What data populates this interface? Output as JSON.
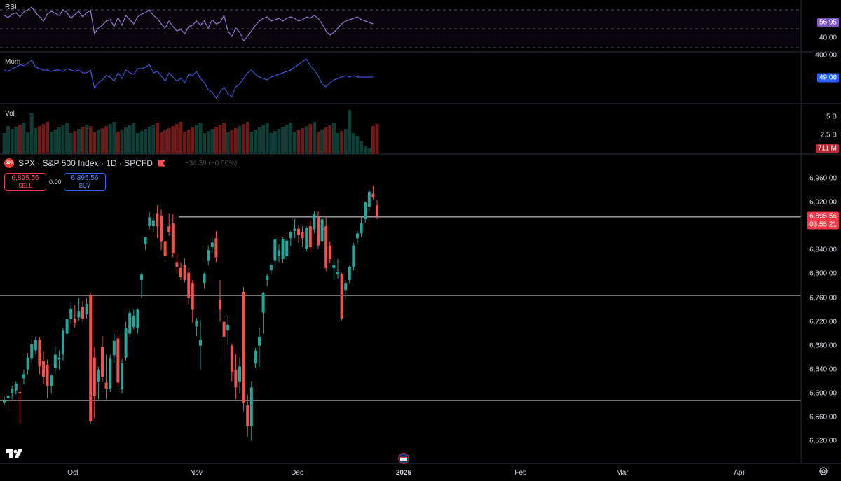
{
  "symbol": {
    "legend_text": "SPX · S&P 500 Index · 1D · SPCFD",
    "badge": "500",
    "change_text": "−34.39 (−0.50%)"
  },
  "trade": {
    "sell_price": "6,895.56",
    "sell_label": "SELL",
    "spread": "0.00",
    "buy_price": "6,895.56",
    "buy_label": "BUY"
  },
  "panes": {
    "rsi": {
      "label": "RSI",
      "value_badge": "56.95",
      "ticks": [
        "40.00"
      ],
      "badge_color": "#7e57c2"
    },
    "mom": {
      "label": "Mom",
      "value_badge": "49.06",
      "ticks": [
        "400.00"
      ],
      "badge_color": "#2962ff"
    },
    "vol": {
      "label": "Vol",
      "value_badge": "711 M",
      "ticks": [
        "5 B",
        "2.5 B"
      ],
      "badge_color": "#b22833"
    }
  },
  "price_axis": {
    "ticks": [
      "6,960.00",
      "6,920.00",
      "6,880.00",
      "6,840.00",
      "6,800.00",
      "6,760.00",
      "6,720.00",
      "6,680.00",
      "6,640.00",
      "6,600.00",
      "6,560.00",
      "6,520.00"
    ],
    "last_price_badge": "6,895.56",
    "countdown_badge": "03:55:21",
    "last_color": "#f23645"
  },
  "time_axis": [
    "Oct",
    "Nov",
    "Dec",
    "2026",
    "Feb",
    "Mar",
    "Apr"
  ],
  "colors": {
    "up": "#26a69a",
    "down": "#ef5350",
    "vol_up": "#0f3d35",
    "vol_down": "#6b1a1a",
    "rsi": "#9575cd",
    "mom": "#3f51d4"
  },
  "chart_data": {
    "type": "candlestick",
    "title": "SPX · S&P 500 Index · 1D · SPCFD",
    "horizontal_lines": [
      6895.56,
      6764,
      6588
    ],
    "ylim": [
      6500,
      6980
    ],
    "candles": [
      {
        "o": 6585,
        "h": 6595,
        "l": 6580,
        "c": 6588
      },
      {
        "o": 6592,
        "h": 6610,
        "l": 6570,
        "c": 6596
      },
      {
        "o": 6600,
        "h": 6612,
        "l": 6590,
        "c": 6608
      },
      {
        "o": 6605,
        "h": 6620,
        "l": 6598,
        "c": 6616
      },
      {
        "o": 6602,
        "h": 6610,
        "l": 6550,
        "c": 6600
      },
      {
        "o": 6625,
        "h": 6640,
        "l": 6615,
        "c": 6632
      },
      {
        "o": 6640,
        "h": 6668,
        "l": 6632,
        "c": 6660
      },
      {
        "o": 6658,
        "h": 6690,
        "l": 6650,
        "c": 6682
      },
      {
        "o": 6672,
        "h": 6695,
        "l": 6666,
        "c": 6690
      },
      {
        "o": 6690,
        "h": 6694,
        "l": 6632,
        "c": 6645
      },
      {
        "o": 6655,
        "h": 6670,
        "l": 6615,
        "c": 6628
      },
      {
        "o": 6648,
        "h": 6657,
        "l": 6592,
        "c": 6612
      },
      {
        "o": 6612,
        "h": 6632,
        "l": 6600,
        "c": 6630
      },
      {
        "o": 6642,
        "h": 6680,
        "l": 6633,
        "c": 6665
      },
      {
        "o": 6657,
        "h": 6672,
        "l": 6640,
        "c": 6660
      },
      {
        "o": 6665,
        "h": 6710,
        "l": 6655,
        "c": 6705
      },
      {
        "o": 6700,
        "h": 6730,
        "l": 6692,
        "c": 6724
      },
      {
        "o": 6724,
        "h": 6752,
        "l": 6716,
        "c": 6742
      },
      {
        "o": 6725,
        "h": 6748,
        "l": 6710,
        "c": 6718
      },
      {
        "o": 6727,
        "h": 6760,
        "l": 6722,
        "c": 6738
      },
      {
        "o": 6745,
        "h": 6755,
        "l": 6720,
        "c": 6725
      },
      {
        "o": 6732,
        "h": 6760,
        "l": 6725,
        "c": 6750
      },
      {
        "o": 6765,
        "h": 6767,
        "l": 6550,
        "c": 6553
      },
      {
        "o": 6660,
        "h": 6677,
        "l": 6558,
        "c": 6595
      },
      {
        "o": 6620,
        "h": 6645,
        "l": 6590,
        "c": 6640
      },
      {
        "o": 6678,
        "h": 6696,
        "l": 6620,
        "c": 6628
      },
      {
        "o": 6618,
        "h": 6665,
        "l": 6590,
        "c": 6608
      },
      {
        "o": 6607,
        "h": 6665,
        "l": 6602,
        "c": 6658
      },
      {
        "o": 6664,
        "h": 6700,
        "l": 6651,
        "c": 6688
      },
      {
        "o": 6692,
        "h": 6698,
        "l": 6610,
        "c": 6618
      },
      {
        "o": 6608,
        "h": 6658,
        "l": 6600,
        "c": 6650
      },
      {
        "o": 6660,
        "h": 6720,
        "l": 6655,
        "c": 6710
      },
      {
        "o": 6700,
        "h": 6740,
        "l": 6694,
        "c": 6735
      },
      {
        "o": 6711,
        "h": 6740,
        "l": 6707,
        "c": 6730
      },
      {
        "o": 6710,
        "h": 6742,
        "l": 6700,
        "c": 6740
      },
      {
        "o": 6790,
        "h": 6802,
        "l": 6760,
        "c": 6799
      },
      {
        "o": 6850,
        "h": 6862,
        "l": 6840,
        "c": 6862
      },
      {
        "o": 6880,
        "h": 6904,
        "l": 6875,
        "c": 6895
      },
      {
        "o": 6880,
        "h": 6902,
        "l": 6870,
        "c": 6890
      },
      {
        "o": 6902,
        "h": 6915,
        "l": 6860,
        "c": 6880
      },
      {
        "o": 6898,
        "h": 6908,
        "l": 6840,
        "c": 6855
      },
      {
        "o": 6855,
        "h": 6880,
        "l": 6826,
        "c": 6830
      },
      {
        "o": 6880,
        "h": 6902,
        "l": 6864,
        "c": 6870
      },
      {
        "o": 6885,
        "h": 6900,
        "l": 6828,
        "c": 6835
      },
      {
        "o": 6820,
        "h": 6835,
        "l": 6800,
        "c": 6812
      },
      {
        "o": 6810,
        "h": 6820,
        "l": 6790,
        "c": 6795
      },
      {
        "o": 6815,
        "h": 6826,
        "l": 6786,
        "c": 6790
      },
      {
        "o": 6802,
        "h": 6810,
        "l": 6750,
        "c": 6760
      },
      {
        "o": 6785,
        "h": 6790,
        "l": 6718,
        "c": 6740
      },
      {
        "o": 6712,
        "h": 6726,
        "l": 6696,
        "c": 6722
      },
      {
        "o": 6680,
        "h": 6723,
        "l": 6640,
        "c": 6690
      },
      {
        "o": 6785,
        "h": 6802,
        "l": 6775,
        "c": 6800
      },
      {
        "o": 6822,
        "h": 6848,
        "l": 6815,
        "c": 6840
      },
      {
        "o": 6845,
        "h": 6860,
        "l": 6835,
        "c": 6853
      },
      {
        "o": 6860,
        "h": 6872,
        "l": 6820,
        "c": 6828
      },
      {
        "o": 6756,
        "h": 6790,
        "l": 6720,
        "c": 6740
      },
      {
        "o": 6720,
        "h": 6730,
        "l": 6655,
        "c": 6695
      },
      {
        "o": 6705,
        "h": 6730,
        "l": 6680,
        "c": 6715
      },
      {
        "o": 6680,
        "h": 6682,
        "l": 6620,
        "c": 6635
      },
      {
        "o": 6640,
        "h": 6666,
        "l": 6590,
        "c": 6610
      },
      {
        "o": 6620,
        "h": 6660,
        "l": 6600,
        "c": 6645
      },
      {
        "o": 6770,
        "h": 6778,
        "l": 6570,
        "c": 6584
      },
      {
        "o": 6580,
        "h": 6598,
        "l": 6528,
        "c": 6545
      },
      {
        "o": 6545,
        "h": 6620,
        "l": 6520,
        "c": 6610
      },
      {
        "o": 6650,
        "h": 6676,
        "l": 6643,
        "c": 6671
      },
      {
        "o": 6680,
        "h": 6710,
        "l": 6644,
        "c": 6695
      },
      {
        "o": 6735,
        "h": 6770,
        "l": 6700,
        "c": 6768
      },
      {
        "o": 6790,
        "h": 6800,
        "l": 6780,
        "c": 6797
      },
      {
        "o": 6806,
        "h": 6818,
        "l": 6800,
        "c": 6815
      },
      {
        "o": 6822,
        "h": 6862,
        "l": 6810,
        "c": 6858
      },
      {
        "o": 6830,
        "h": 6850,
        "l": 6820,
        "c": 6840
      },
      {
        "o": 6825,
        "h": 6862,
        "l": 6818,
        "c": 6858
      },
      {
        "o": 6830,
        "h": 6860,
        "l": 6824,
        "c": 6856
      },
      {
        "o": 6860,
        "h": 6872,
        "l": 6846,
        "c": 6870
      },
      {
        "o": 6872,
        "h": 6892,
        "l": 6860,
        "c": 6876
      },
      {
        "o": 6876,
        "h": 6882,
        "l": 6852,
        "c": 6865
      },
      {
        "o": 6870,
        "h": 6880,
        "l": 6845,
        "c": 6860
      },
      {
        "o": 6842,
        "h": 6880,
        "l": 6838,
        "c": 6878
      },
      {
        "o": 6880,
        "h": 6890,
        "l": 6840,
        "c": 6845
      },
      {
        "o": 6875,
        "h": 6905,
        "l": 6868,
        "c": 6900
      },
      {
        "o": 6895,
        "h": 6905,
        "l": 6842,
        "c": 6848
      },
      {
        "o": 6855,
        "h": 6898,
        "l": 6842,
        "c": 6892
      },
      {
        "o": 6880,
        "h": 6896,
        "l": 6805,
        "c": 6810
      },
      {
        "o": 6848,
        "h": 6855,
        "l": 6818,
        "c": 6825
      },
      {
        "o": 6810,
        "h": 6822,
        "l": 6790,
        "c": 6815
      },
      {
        "o": 6800,
        "h": 6825,
        "l": 6792,
        "c": 6804
      },
      {
        "o": 6800,
        "h": 6802,
        "l": 6722,
        "c": 6725
      },
      {
        "o": 6773,
        "h": 6790,
        "l": 6758,
        "c": 6785
      },
      {
        "o": 6790,
        "h": 6815,
        "l": 6784,
        "c": 6812
      },
      {
        "o": 6812,
        "h": 6852,
        "l": 6806,
        "c": 6848
      },
      {
        "o": 6860,
        "h": 6872,
        "l": 6850,
        "c": 6868
      },
      {
        "o": 6868,
        "h": 6895,
        "l": 6862,
        "c": 6885
      },
      {
        "o": 6892,
        "h": 6922,
        "l": 6885,
        "c": 6920
      },
      {
        "o": 6912,
        "h": 6942,
        "l": 6905,
        "c": 6938
      },
      {
        "o": 6935,
        "h": 6948,
        "l": 6925,
        "c": 6928
      },
      {
        "o": 6915,
        "h": 6924,
        "l": 6892,
        "c": 6896
      }
    ],
    "rsi_value": 56.95,
    "mom_value": 49.06,
    "volume_last": "711 M"
  }
}
